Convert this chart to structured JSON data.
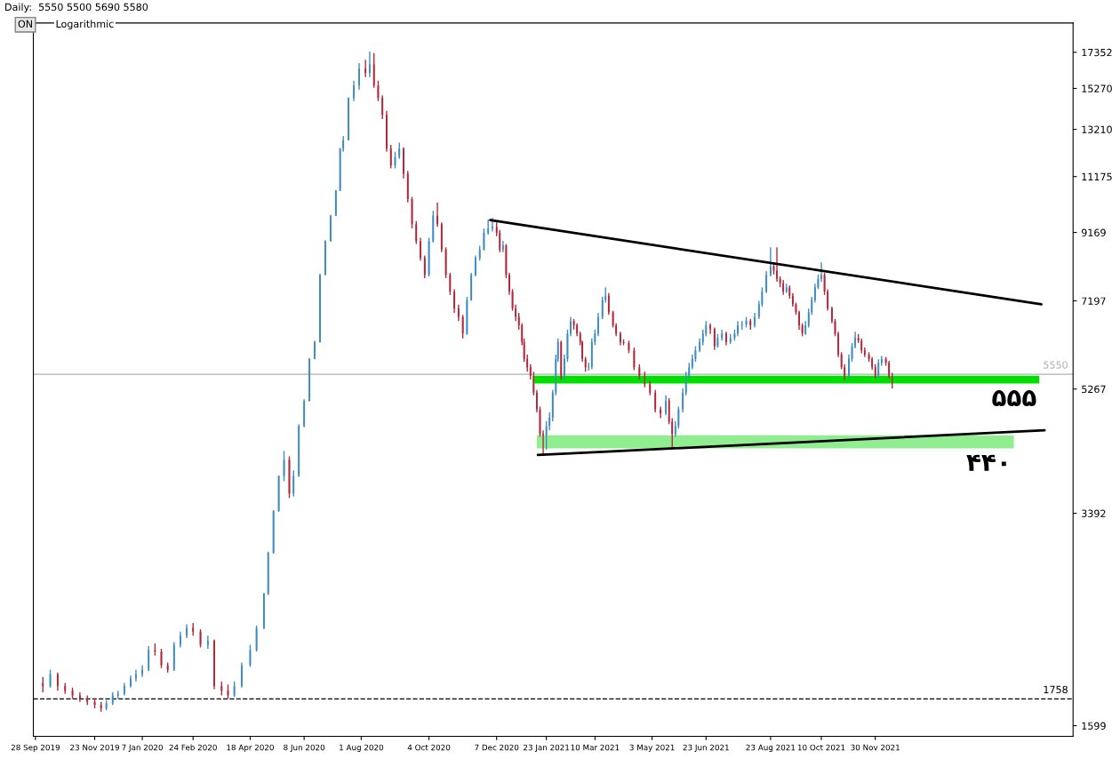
{
  "chart_data": {
    "type": "candlestick",
    "title": "Daily:  5550 5500 5690 5580",
    "subtitle": "Logarithmic",
    "annotations": [
      "ON",
      {
        "text": "۵۵۵",
        "x": "2022-05-04",
        "y": 5370
      },
      {
        "text": "۴۴۰",
        "x": "2022-04-10",
        "y": 4270
      }
    ],
    "log": "y",
    "grid": false,
    "x": [
      "2019-10-05",
      "2019-10-12",
      "2019-10-19",
      "2019-10-26",
      "2019-11-02",
      "2019-11-09",
      "2019-11-16",
      "2019-11-23",
      "2019-11-29",
      "2019-12-04",
      "2019-12-10",
      "2019-12-15",
      "2019-12-21",
      "2019-12-27",
      "2020-01-01",
      "2020-01-07",
      "2020-01-13",
      "2020-01-19",
      "2020-01-25",
      "2020-01-31",
      "2020-02-06",
      "2020-02-12",
      "2020-02-18",
      "2020-02-24",
      "2020-03-02",
      "2020-03-09",
      "2020-03-15",
      "2020-03-22",
      "2020-03-28",
      "2020-04-03",
      "2020-04-10",
      "2020-04-18",
      "2020-04-24",
      "2020-05-01",
      "2020-05-05",
      "2020-05-10",
      "2020-05-15",
      "2020-05-20",
      "2020-05-25",
      "2020-05-29",
      "2020-06-03",
      "2020-06-08",
      "2020-06-13",
      "2020-06-18",
      "2020-06-23",
      "2020-06-28",
      "2020-07-03",
      "2020-07-08",
      "2020-07-12",
      "2020-07-15",
      "2020-07-20",
      "2020-07-25",
      "2020-07-30",
      "2020-08-05",
      "2020-08-09",
      "2020-08-13",
      "2020-08-17",
      "2020-08-21",
      "2020-08-25",
      "2020-08-29",
      "2020-09-02",
      "2020-09-06",
      "2020-09-10",
      "2020-09-14",
      "2020-09-18",
      "2020-09-22",
      "2020-09-26",
      "2020-09-30",
      "2020-10-04",
      "2020-10-08",
      "2020-10-12",
      "2020-10-16",
      "2020-10-20",
      "2020-10-24",
      "2020-10-28",
      "2020-11-01",
      "2020-11-05",
      "2020-11-09",
      "2020-11-13",
      "2020-11-17",
      "2020-11-21",
      "2020-11-25",
      "2020-11-29",
      "2020-12-03",
      "2020-12-07",
      "2020-12-10",
      "2020-12-13",
      "2020-12-16",
      "2020-12-19",
      "2020-12-22",
      "2020-12-25",
      "2020-12-28",
      "2020-12-31",
      "2021-01-02",
      "2021-01-05",
      "2021-01-08",
      "2021-01-11",
      "2021-01-14",
      "2021-01-17",
      "2021-01-20",
      "2021-01-23",
      "2021-01-26",
      "2021-01-29",
      "2021-02-01",
      "2021-02-03",
      "2021-02-06",
      "2021-02-09",
      "2021-02-12",
      "2021-02-15",
      "2021-02-18",
      "2021-02-21",
      "2021-02-24",
      "2021-02-26",
      "2021-03-01",
      "2021-03-04",
      "2021-03-07",
      "2021-03-10",
      "2021-03-13",
      "2021-03-17",
      "2021-03-20",
      "2021-03-23",
      "2021-03-27",
      "2021-03-30",
      "2021-04-03",
      "2021-04-06",
      "2021-04-11",
      "2021-04-16",
      "2021-04-21",
      "2021-04-26",
      "2021-05-01",
      "2021-05-06",
      "2021-05-11",
      "2021-05-16",
      "2021-05-19",
      "2021-05-22",
      "2021-05-25",
      "2021-05-28",
      "2021-06-01",
      "2021-06-04",
      "2021-06-07",
      "2021-06-10",
      "2021-06-13",
      "2021-06-17",
      "2021-06-20",
      "2021-06-23",
      "2021-06-27",
      "2021-07-01",
      "2021-07-04",
      "2021-07-08",
      "2021-07-12",
      "2021-07-16",
      "2021-07-20",
      "2021-07-23",
      "2021-07-27",
      "2021-07-31",
      "2021-08-04",
      "2021-08-08",
      "2021-08-12",
      "2021-08-15",
      "2021-08-19",
      "2021-08-23",
      "2021-08-26",
      "2021-08-29",
      "2021-09-01",
      "2021-09-04",
      "2021-09-07",
      "2021-09-10",
      "2021-09-13",
      "2021-09-16",
      "2021-09-19",
      "2021-09-22",
      "2021-09-25",
      "2021-09-28",
      "2021-10-01",
      "2021-10-04",
      "2021-10-07",
      "2021-10-10",
      "2021-10-13",
      "2021-10-16",
      "2021-10-20",
      "2021-10-23",
      "2021-10-26",
      "2021-10-29",
      "2021-11-01",
      "2021-11-05",
      "2021-11-08",
      "2021-11-11",
      "2021-11-14",
      "2021-11-17",
      "2021-11-20",
      "2021-11-24",
      "2021-11-27",
      "2021-11-30",
      "2021-12-03",
      "2021-12-06",
      "2021-12-10",
      "2021-12-13",
      "2021-12-16"
    ],
    "ohlc": [
      [
        1860,
        1900,
        1800,
        1840
      ],
      [
        1840,
        1950,
        1830,
        1920
      ],
      [
        1920,
        1930,
        1810,
        1840
      ],
      [
        1840,
        1860,
        1790,
        1810
      ],
      [
        1810,
        1830,
        1760,
        1780
      ],
      [
        1780,
        1800,
        1740,
        1760
      ],
      [
        1760,
        1780,
        1720,
        1740
      ],
      [
        1740,
        1760,
        1700,
        1720
      ],
      [
        1720,
        1740,
        1680,
        1700
      ],
      [
        1700,
        1750,
        1690,
        1730
      ],
      [
        1730,
        1800,
        1720,
        1780
      ],
      [
        1780,
        1810,
        1760,
        1790
      ],
      [
        1790,
        1860,
        1780,
        1840
      ],
      [
        1840,
        1910,
        1830,
        1890
      ],
      [
        1890,
        1950,
        1870,
        1920
      ],
      [
        1920,
        1980,
        1900,
        1950
      ],
      [
        1950,
        2120,
        1940,
        2090
      ],
      [
        2090,
        2140,
        2050,
        2080
      ],
      [
        2080,
        2100,
        1960,
        1980
      ],
      [
        1980,
        2000,
        1930,
        1950
      ],
      [
        1950,
        2150,
        1940,
        2130
      ],
      [
        2130,
        2230,
        2110,
        2200
      ],
      [
        2200,
        2290,
        2180,
        2260
      ],
      [
        2260,
        2300,
        2200,
        2230
      ],
      [
        2230,
        2250,
        2110,
        2130
      ],
      [
        2130,
        2200,
        2100,
        2160
      ],
      [
        2160,
        2170,
        1820,
        1840
      ],
      [
        1840,
        1870,
        1780,
        1810
      ],
      [
        1810,
        1850,
        1760,
        1780
      ],
      [
        1780,
        1870,
        1770,
        1840
      ],
      [
        1840,
        2000,
        1830,
        1980
      ],
      [
        1980,
        2130,
        1970,
        2090
      ],
      [
        2090,
        2280,
        2080,
        2260
      ],
      [
        2260,
        2560,
        2250,
        2550
      ],
      [
        2550,
        2960,
        2540,
        2950
      ],
      [
        2950,
        3430,
        2940,
        3420
      ],
      [
        3420,
        3880,
        3410,
        3870
      ],
      [
        3870,
        4230,
        3800,
        4100
      ],
      [
        4100,
        4150,
        3580,
        3640
      ],
      [
        3640,
        3950,
        3600,
        3870
      ],
      [
        3870,
        4650,
        3860,
        4620
      ],
      [
        4620,
        5080,
        4600,
        5050
      ],
      [
        5050,
        5880,
        5040,
        5860
      ],
      [
        5860,
        6250,
        5850,
        6220
      ],
      [
        6220,
        7920,
        6210,
        7890
      ],
      [
        7890,
        8920,
        7880,
        8890
      ],
      [
        8890,
        9760,
        8880,
        9730
      ],
      [
        9730,
        10660,
        9720,
        10630
      ],
      [
        10630,
        12370,
        10620,
        12340
      ],
      [
        12340,
        12900,
        12200,
        12710
      ],
      [
        12710,
        14800,
        12700,
        14760
      ],
      [
        14760,
        15700,
        14600,
        15430
      ],
      [
        15430,
        16700,
        15200,
        16380
      ],
      [
        16380,
        16900,
        15900,
        16130
      ],
      [
        16130,
        17400,
        15900,
        16620
      ],
      [
        16620,
        17300,
        15300,
        15430
      ],
      [
        15430,
        15700,
        14600,
        14760
      ],
      [
        14760,
        14900,
        13700,
        13900
      ],
      [
        13900,
        14100,
        12200,
        12340
      ],
      [
        12340,
        12500,
        11500,
        11630
      ],
      [
        11630,
        12200,
        11500,
        11980
      ],
      [
        11980,
        12600,
        11900,
        12340
      ],
      [
        12340,
        12400,
        11100,
        11290
      ],
      [
        11290,
        11400,
        10200,
        10320
      ],
      [
        10320,
        10400,
        9300,
        9440
      ],
      [
        9440,
        9550,
        8800,
        8890
      ],
      [
        8890,
        9000,
        8300,
        8380
      ],
      [
        8380,
        8450,
        7800,
        7890
      ],
      [
        7890,
        9000,
        7850,
        8890
      ],
      [
        8890,
        9900,
        8850,
        9730
      ],
      [
        9730,
        10200,
        9350,
        9440
      ],
      [
        9440,
        9500,
        8550,
        8630
      ],
      [
        8630,
        8700,
        7800,
        7890
      ],
      [
        7890,
        7950,
        7350,
        7440
      ],
      [
        7440,
        7500,
        6900,
        7010
      ],
      [
        7010,
        7100,
        6700,
        6800
      ],
      [
        6800,
        6850,
        6300,
        6410
      ],
      [
        6410,
        7300,
        6380,
        7220
      ],
      [
        7220,
        7950,
        7200,
        7890
      ],
      [
        7890,
        8450,
        7850,
        8380
      ],
      [
        8380,
        8750,
        8300,
        8630
      ],
      [
        8630,
        9300,
        8600,
        9160
      ],
      [
        9160,
        9600,
        9100,
        9300
      ],
      [
        9300,
        9650,
        9200,
        9350
      ],
      [
        9350,
        9500,
        9050,
        9160
      ],
      [
        9160,
        9250,
        8550,
        8630
      ],
      [
        8630,
        8900,
        8550,
        8760
      ],
      [
        8760,
        8800,
        7800,
        7890
      ],
      [
        7890,
        7950,
        7350,
        7440
      ],
      [
        7440,
        7500,
        6950,
        7010
      ],
      [
        7010,
        7100,
        6700,
        6800
      ],
      [
        6800,
        6900,
        6500,
        6600
      ],
      [
        6600,
        6650,
        6150,
        6220
      ],
      [
        6220,
        6300,
        5800,
        5860
      ],
      [
        5860,
        5950,
        5600,
        5690
      ],
      [
        5690,
        5750,
        5450,
        5520
      ],
      [
        5520,
        5600,
        5150,
        5200
      ],
      [
        5200,
        5250,
        4850,
        4900
      ],
      [
        4900,
        4950,
        4450,
        4490
      ],
      [
        4490,
        4550,
        4170,
        4290
      ],
      [
        4290,
        4700,
        4250,
        4620
      ],
      [
        4620,
        4850,
        4550,
        4760
      ],
      [
        4760,
        5250,
        4700,
        5200
      ],
      [
        5200,
        5950,
        5150,
        5860
      ],
      [
        5860,
        6300,
        5800,
        6220
      ],
      [
        6220,
        6250,
        5450,
        5520
      ],
      [
        5520,
        5950,
        5450,
        5860
      ],
      [
        5860,
        6500,
        5800,
        6410
      ],
      [
        6410,
        6800,
        6350,
        6700
      ],
      [
        6700,
        6750,
        6500,
        6600
      ],
      [
        6600,
        6650,
        6350,
        6410
      ],
      [
        6410,
        6450,
        6150,
        6220
      ],
      [
        6220,
        6250,
        5800,
        5860
      ],
      [
        5860,
        5900,
        5600,
        5690
      ],
      [
        5690,
        5780,
        5620,
        5700
      ],
      [
        5700,
        6300,
        5650,
        6220
      ],
      [
        6220,
        6500,
        6150,
        6410
      ],
      [
        6410,
        6900,
        6350,
        6800
      ],
      [
        6800,
        7300,
        6750,
        7220
      ],
      [
        7220,
        7550,
        7150,
        7330
      ],
      [
        7330,
        7400,
        6850,
        6910
      ],
      [
        6910,
        6950,
        6550,
        6600
      ],
      [
        6600,
        6650,
        6350,
        6410
      ],
      [
        6410,
        6450,
        6150,
        6220
      ],
      [
        6220,
        6280,
        6150,
        6200
      ],
      [
        6200,
        6250,
        5980,
        6040
      ],
      [
        6040,
        6100,
        5630,
        5690
      ],
      [
        5690,
        5750,
        5450,
        5520
      ],
      [
        5520,
        5600,
        5300,
        5360
      ],
      [
        5360,
        5420,
        5150,
        5200
      ],
      [
        5200,
        5250,
        4850,
        4900
      ],
      [
        4900,
        4950,
        4750,
        4830
      ],
      [
        4830,
        5150,
        4800,
        5050
      ],
      [
        5050,
        5100,
        4650,
        4690
      ],
      [
        4690,
        4750,
        4290,
        4490
      ],
      [
        4490,
        4700,
        4450,
        4620
      ],
      [
        4620,
        4950,
        4580,
        4900
      ],
      [
        4900,
        5280,
        4850,
        5200
      ],
      [
        5200,
        5600,
        5150,
        5520
      ],
      [
        5520,
        5780,
        5480,
        5690
      ],
      [
        5690,
        5950,
        5650,
        5860
      ],
      [
        5860,
        6130,
        5800,
        6040
      ],
      [
        6040,
        6300,
        6000,
        6220
      ],
      [
        6220,
        6500,
        6150,
        6410
      ],
      [
        6410,
        6700,
        6350,
        6600
      ],
      [
        6600,
        6650,
        6400,
        6510
      ],
      [
        6510,
        6550,
        6050,
        6130
      ],
      [
        6130,
        6400,
        6100,
        6310
      ],
      [
        6310,
        6500,
        6250,
        6410
      ],
      [
        6410,
        6450,
        6150,
        6220
      ],
      [
        6220,
        6400,
        6180,
        6310
      ],
      [
        6310,
        6500,
        6250,
        6410
      ],
      [
        6410,
        6700,
        6350,
        6600
      ],
      [
        6600,
        6700,
        6500,
        6620
      ],
      [
        6620,
        6800,
        6550,
        6700
      ],
      [
        6700,
        6750,
        6500,
        6600
      ],
      [
        6600,
        6900,
        6550,
        6800
      ],
      [
        6800,
        7200,
        6750,
        7110
      ],
      [
        7110,
        7550,
        7050,
        7440
      ],
      [
        7440,
        8000,
        7400,
        7890
      ],
      [
        7890,
        8700,
        7850,
        8130
      ],
      [
        8130,
        8200,
        7900,
        8010
      ],
      [
        8010,
        8700,
        7700,
        7780
      ],
      [
        7780,
        7850,
        7550,
        7660
      ],
      [
        7660,
        7750,
        7350,
        7440
      ],
      [
        7440,
        7650,
        7400,
        7550
      ],
      [
        7550,
        7600,
        7250,
        7330
      ],
      [
        7330,
        7400,
        7050,
        7110
      ],
      [
        7110,
        7150,
        6850,
        6910
      ],
      [
        6910,
        6950,
        6500,
        6600
      ],
      [
        6600,
        6650,
        6350,
        6410
      ],
      [
        6410,
        6700,
        6380,
        6600
      ],
      [
        6600,
        7000,
        6550,
        6910
      ],
      [
        6910,
        7300,
        6850,
        7220
      ],
      [
        7220,
        7650,
        7150,
        7550
      ],
      [
        7550,
        7900,
        7500,
        7780
      ],
      [
        7780,
        8250,
        7700,
        7890
      ],
      [
        7890,
        7950,
        7350,
        7440
      ],
      [
        7440,
        7500,
        6950,
        7010
      ],
      [
        7010,
        7050,
        6650,
        6700
      ],
      [
        6700,
        6750,
        6350,
        6410
      ],
      [
        6410,
        6450,
        5900,
        5950
      ],
      [
        5950,
        6000,
        5650,
        5690
      ],
      [
        5690,
        5750,
        5440,
        5520
      ],
      [
        5520,
        5950,
        5480,
        5860
      ],
      [
        5860,
        6200,
        5800,
        6130
      ],
      [
        6130,
        6450,
        6080,
        6310
      ],
      [
        6310,
        6400,
        6200,
        6250
      ],
      [
        6250,
        6300,
        5980,
        6040
      ],
      [
        6040,
        6100,
        5900,
        5950
      ],
      [
        5950,
        6000,
        5800,
        5860
      ],
      [
        5860,
        5900,
        5640,
        5690
      ],
      [
        5690,
        5750,
        5470,
        5520
      ],
      [
        5520,
        5850,
        5480,
        5780
      ],
      [
        5780,
        5920,
        5720,
        5860
      ],
      [
        5860,
        5900,
        5720,
        5780
      ],
      [
        5780,
        5820,
        5470,
        5520
      ],
      [
        5520,
        5580,
        5280,
        5440
      ]
    ],
    "colors": [
      "#b3273a",
      "#3d8cc4",
      "#b3273a",
      "#b3273a",
      "#b3273a",
      "#b3273a",
      "#b3273a",
      "#b3273a",
      "#b3273a",
      "#3d8cc4",
      "#3d8cc4",
      "#3d8cc4",
      "#3d8cc4",
      "#3d8cc4",
      "#3d8cc4",
      "#3d8cc4",
      "#3d8cc4",
      "#b3273a",
      "#b3273a",
      "#b3273a",
      "#3d8cc4",
      "#3d8cc4",
      "#3d8cc4",
      "#b3273a",
      "#b3273a",
      "#3d8cc4",
      "#b3273a",
      "#b3273a",
      "#b3273a",
      "#3d8cc4",
      "#3d8cc4",
      "#3d8cc4",
      "#3d8cc4",
      "#3d8cc4",
      "#3d8cc4",
      "#3d8cc4",
      "#3d8cc4",
      "#3d8cc4",
      "#b3273a",
      "#3d8cc4",
      "#3d8cc4",
      "#3d8cc4",
      "#3d8cc4",
      "#3d8cc4",
      "#3d8cc4",
      "#3d8cc4",
      "#3d8cc4",
      "#3d8cc4",
      "#3d8cc4",
      "#3d8cc4",
      "#3d8cc4",
      "#3d8cc4",
      "#3d8cc4",
      "#b3273a",
      "#3d8cc4",
      "#b3273a",
      "#b3273a",
      "#b3273a",
      "#b3273a",
      "#b3273a",
      "#3d8cc4",
      "#3d8cc4",
      "#b3273a",
      "#b3273a",
      "#b3273a",
      "#b3273a",
      "#b3273a",
      "#b3273a",
      "#3d8cc4",
      "#3d8cc4",
      "#b3273a",
      "#b3273a",
      "#b3273a",
      "#b3273a",
      "#b3273a",
      "#b3273a",
      "#b3273a",
      "#3d8cc4",
      "#3d8cc4",
      "#3d8cc4",
      "#3d8cc4",
      "#3d8cc4",
      "#3d8cc4",
      "#3d8cc4",
      "#b3273a",
      "#b3273a",
      "#3d8cc4",
      "#b3273a",
      "#b3273a",
      "#b3273a",
      "#b3273a",
      "#b3273a",
      "#b3273a",
      "#b3273a",
      "#b3273a",
      "#b3273a",
      "#b3273a",
      "#b3273a",
      "#b3273a",
      "#b3273a",
      "#3d8cc4",
      "#3d8cc4",
      "#3d8cc4",
      "#3d8cc4",
      "#3d8cc4",
      "#b3273a",
      "#3d8cc4",
      "#3d8cc4",
      "#3d8cc4",
      "#b3273a",
      "#b3273a",
      "#b3273a",
      "#b3273a",
      "#b3273a",
      "#3d8cc4",
      "#3d8cc4",
      "#3d8cc4",
      "#3d8cc4",
      "#3d8cc4",
      "#3d8cc4",
      "#b3273a",
      "#b3273a",
      "#b3273a",
      "#b3273a",
      "#b3273a",
      "#b3273a",
      "#b3273a",
      "#b3273a",
      "#b3273a",
      "#b3273a",
      "#b3273a",
      "#b3273a",
      "#3d8cc4",
      "#b3273a",
      "#b3273a",
      "#3d8cc4",
      "#3d8cc4",
      "#3d8cc4",
      "#3d8cc4",
      "#3d8cc4",
      "#3d8cc4",
      "#3d8cc4",
      "#3d8cc4",
      "#3d8cc4",
      "#3d8cc4",
      "#b3273a",
      "#b3273a",
      "#3d8cc4",
      "#3d8cc4",
      "#b3273a",
      "#3d8cc4",
      "#3d8cc4",
      "#3d8cc4",
      "#3d8cc4",
      "#3d8cc4",
      "#b3273a",
      "#3d8cc4",
      "#3d8cc4",
      "#3d8cc4",
      "#3d8cc4",
      "#3d8cc4",
      "#b3273a",
      "#b3273a",
      "#b3273a",
      "#b3273a",
      "#3d8cc4",
      "#b3273a",
      "#b3273a",
      "#b3273a",
      "#b3273a",
      "#b3273a",
      "#3d8cc4",
      "#3d8cc4",
      "#3d8cc4",
      "#3d8cc4",
      "#3d8cc4",
      "#3d8cc4",
      "#b3273a",
      "#b3273a",
      "#b3273a",
      "#b3273a",
      "#b3273a",
      "#b3273a",
      "#b3273a",
      "#3d8cc4",
      "#3d8cc4",
      "#3d8cc4",
      "#b3273a",
      "#b3273a",
      "#b3273a",
      "#b3273a",
      "#b3273a",
      "#b3273a",
      "#3d8cc4",
      "#3d8cc4",
      "#b3273a",
      "#b3273a",
      "#b3273a"
    ],
    "series": [
      {
        "type": "line",
        "color": "#000000",
        "x": [
          "2020-12-01",
          "2022-05-06"
        ],
        "values": [
          9580,
          7110
        ]
      },
      {
        "type": "line",
        "color": "#000000",
        "x": [
          "2021-01-15",
          "2022-05-09"
        ],
        "values": [
          4170,
          4550
        ]
      },
      {
        "type": "line",
        "color": "#00e000",
        "x": [
          "2021-01-11",
          "2022-05-04"
        ],
        "values": [
          null,
          null
        ],
        "lower": [
          5370,
          5370
        ],
        "upper": [
          5520,
          5520
        ]
      },
      {
        "type": "line",
        "color": "#90ee90",
        "x": [
          "2021-01-14",
          "2022-04-10"
        ],
        "values": [
          null,
          null
        ],
        "lower": [
          4270,
          4270
        ],
        "upper": [
          4470,
          4470
        ]
      }
    ],
    "ref_lines": [
      {
        "axis": "y",
        "value": 5550,
        "label": "5550",
        "color": "#b0b0b0",
        "line_style": "solid"
      },
      {
        "axis": "y",
        "value": 1758,
        "label": "1758",
        "color": "#000000",
        "line_style": "dashed"
      }
    ],
    "xlim": [
      "2019-09-26",
      "2022-06-05"
    ],
    "ylim": [
      1540,
      19250
    ],
    "xticks": [
      {
        "value": "2019-09-28",
        "label": "28 Sep 2019"
      },
      {
        "value": "2019-11-23",
        "label": "23 Nov 2019"
      },
      {
        "value": "2020-01-07",
        "label": "7 Jan 2020"
      },
      {
        "value": "2020-02-24",
        "label": "24 Feb 2020"
      },
      {
        "value": "2020-04-18",
        "label": "18 Apr 2020"
      },
      {
        "value": "2020-06-08",
        "label": "8 Jun 2020"
      },
      {
        "value": "2020-08-01",
        "label": "1 Aug 2020"
      },
      {
        "value": "2020-10-04",
        "label": "4 Oct 2020"
      },
      {
        "value": "2020-12-07",
        "label": "7 Dec 2020"
      },
      {
        "value": "2021-01-23",
        "label": "23 Jan 2021"
      },
      {
        "value": "2021-03-10",
        "label": "10 Mar 2021"
      },
      {
        "value": "2021-05-03",
        "label": "3 May 2021"
      },
      {
        "value": "2021-06-23",
        "label": "23 Jun 2021"
      },
      {
        "value": "2021-08-23",
        "label": "23 Aug 2021"
      },
      {
        "value": "2021-10-10",
        "label": "10 Oct 2021"
      },
      {
        "value": "2021-11-30",
        "label": "30 Nov 2021"
      }
    ],
    "yticks": [
      1599,
      3392,
      5267,
      7197,
      9169,
      11175,
      13210,
      15270,
      17352
    ]
  }
}
